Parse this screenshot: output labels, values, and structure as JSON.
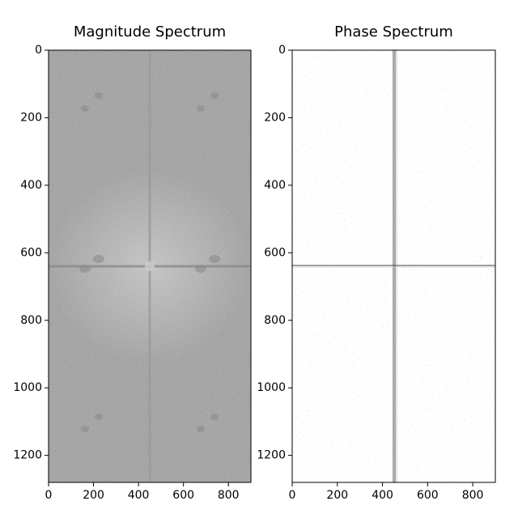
{
  "chart_data": [
    {
      "type": "image",
      "title": "Magnitude Spectrum",
      "xlim": [
        0,
        900
      ],
      "ylim": [
        1280,
        0
      ],
      "xticks": [
        0,
        200,
        400,
        600,
        800
      ],
      "yticks": [
        0,
        200,
        400,
        600,
        800,
        1000,
        1200
      ]
    },
    {
      "type": "image",
      "title": "Phase Spectrum",
      "xlim": [
        0,
        900
      ],
      "ylim": [
        1280,
        0
      ],
      "xticks": [
        0,
        200,
        400,
        600,
        800
      ],
      "yticks": [
        0,
        200,
        400,
        600,
        800,
        1000,
        1200
      ]
    }
  ]
}
